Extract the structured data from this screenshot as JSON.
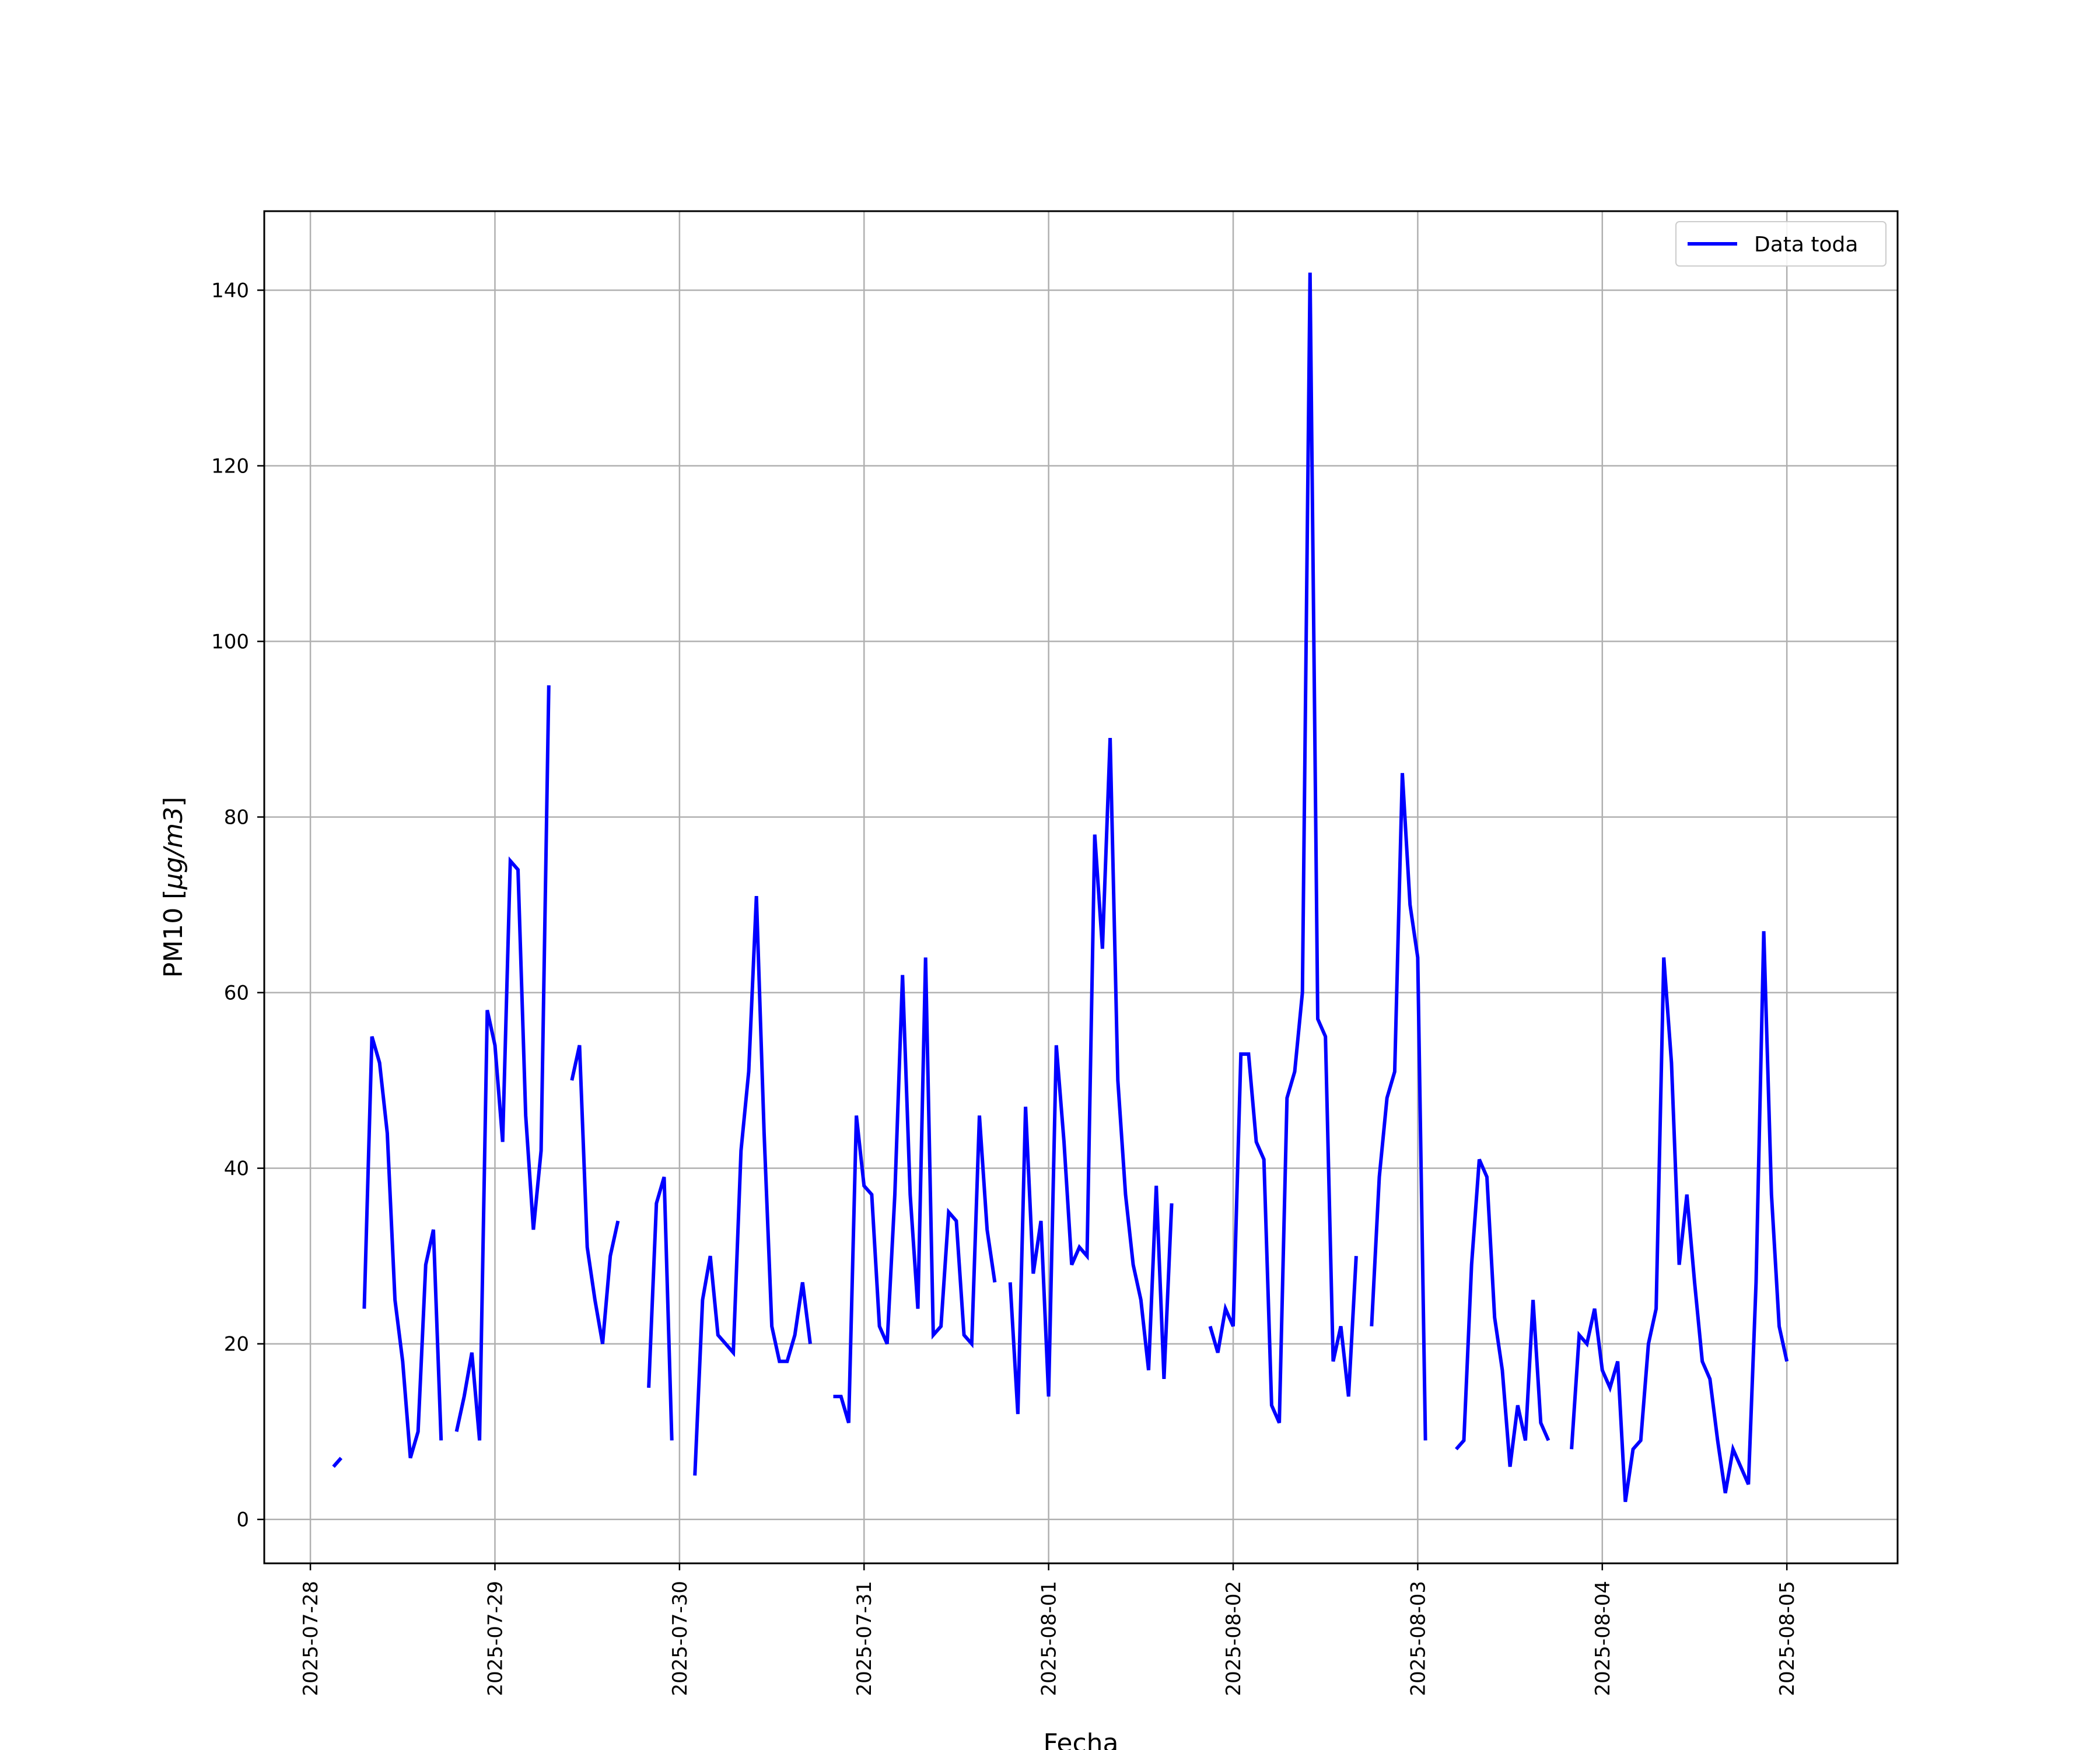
{
  "chart_data": {
    "type": "line",
    "title": "",
    "xlabel": "Fecha",
    "ylabel_prefix": "PM10 [",
    "ylabel_unit": "μg/m3",
    "ylabel_suffix": "]",
    "ylim": [
      -5,
      149
    ],
    "yticks": [
      0,
      20,
      40,
      60,
      80,
      100,
      120,
      140
    ],
    "x_range": [
      "2025-07-27 18:00",
      "2025-08-05 14:24"
    ],
    "xtick_labels": [
      "2025-07-28",
      "2025-07-29",
      "2025-07-30",
      "2025-07-31",
      "2025-08-01",
      "2025-08-02",
      "2025-08-03",
      "2025-08-04",
      "2025-08-05"
    ],
    "grid": true,
    "legend_position": "top-right",
    "series": [
      {
        "name": "Data toda",
        "color": "#0000ff",
        "segments": [
          {
            "start": "2025-07-28 03:00",
            "values": [
              6,
              7
            ]
          },
          {
            "start": "2025-07-28 07:00",
            "values": [
              24,
              55,
              52,
              44,
              25,
              18,
              7,
              10,
              29,
              33,
              9
            ]
          },
          {
            "start": "2025-07-28 19:00",
            "values": [
              10,
              14,
              19,
              9,
              58,
              54,
              43,
              75,
              74,
              46,
              33,
              42,
              95
            ]
          },
          {
            "start": "2025-07-29 10:00",
            "values": [
              50,
              54,
              31,
              25,
              20,
              30,
              34
            ]
          },
          {
            "start": "2025-07-29 20:00",
            "values": [
              15,
              36,
              39,
              9
            ]
          },
          {
            "start": "2025-07-30 02:00",
            "values": [
              5,
              25,
              30,
              21,
              20,
              19,
              42,
              51,
              71,
              44,
              22,
              18,
              18,
              21,
              27,
              20
            ]
          },
          {
            "start": "2025-07-30 20:00",
            "values": [
              14,
              14,
              11,
              46,
              38,
              37,
              22,
              20,
              37,
              62,
              37,
              24,
              64,
              21,
              22,
              35,
              34,
              21,
              20,
              46,
              33,
              27
            ]
          },
          {
            "start": "2025-07-31 19:00",
            "values": [
              27,
              12,
              47,
              28,
              34,
              14,
              54,
              43,
              29,
              31,
              30,
              78,
              65,
              89,
              50,
              37,
              29,
              25,
              17,
              38,
              16,
              36
            ]
          },
          {
            "start": "2025-08-01 21:00",
            "values": [
              22,
              19,
              24,
              22,
              53,
              53,
              43,
              41,
              13,
              11,
              48,
              51,
              60,
              142,
              57,
              55,
              18,
              22,
              14,
              30
            ]
          },
          {
            "start": "2025-08-02 18:00",
            "values": [
              22,
              39,
              48,
              51,
              85,
              70,
              64,
              9
            ]
          },
          {
            "start": "2025-08-03 05:00",
            "values": [
              8,
              9,
              29,
              41,
              39,
              23,
              17,
              6,
              13,
              9,
              25,
              11,
              9
            ]
          },
          {
            "start": "2025-08-03 20:00",
            "values": [
              8,
              21,
              20,
              24,
              17,
              15,
              18,
              2,
              8,
              9,
              20,
              24,
              64,
              52,
              29,
              37,
              27,
              18,
              16,
              9,
              3,
              8,
              6,
              4,
              27,
              67,
              37,
              22,
              18
            ]
          }
        ]
      }
    ]
  }
}
